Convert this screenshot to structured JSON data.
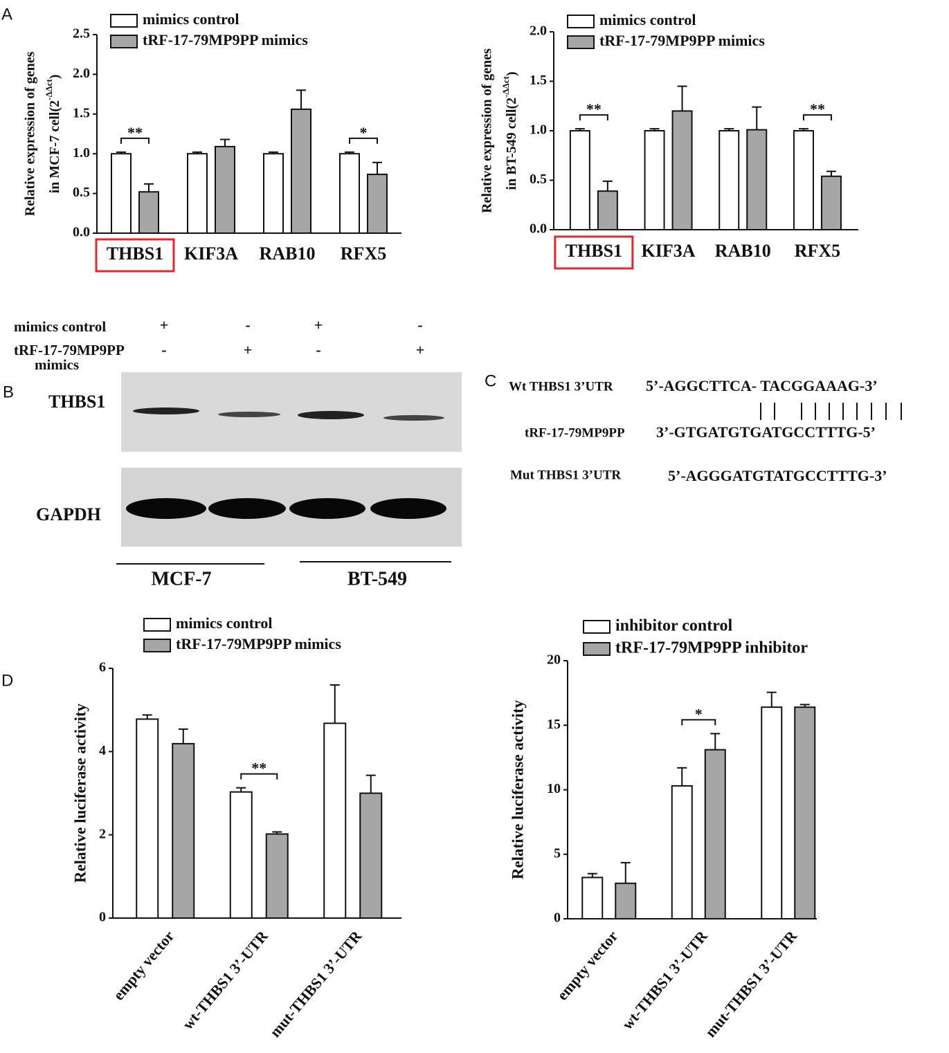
{
  "chart_data": [
    {
      "type": "bar",
      "panel": "A",
      "ylabel": [
        "Relative  expression of genes",
        "in MCF-7 cell(2",
        "-ΔΔct",
        ")"
      ],
      "categories": [
        "THBS1",
        "KIF3A",
        "RAB10",
        "RFX5"
      ],
      "series": [
        {
          "name": "mimics control",
          "color": "#ffffff",
          "values": [
            1.0,
            1.0,
            1.0,
            1.0
          ],
          "errors": [
            0.02,
            0.02,
            0.02,
            0.02
          ]
        },
        {
          "name": "tRF-17-79MP9PP mimics",
          "color": "#a6a6a6",
          "values": [
            0.52,
            1.09,
            1.56,
            0.74
          ],
          "errors": [
            0.1,
            0.09,
            0.24,
            0.15
          ]
        }
      ],
      "significance": [
        "**",
        null,
        null,
        "*"
      ],
      "highlight": [
        true,
        false,
        false,
        false
      ],
      "highlight_color": "#e8262b",
      "ylim": [
        0,
        2.5
      ],
      "yticks": [
        {
          "value": 0,
          "label": "0.0"
        },
        {
          "value": 0.5,
          "label": "0.5"
        },
        {
          "value": 1,
          "label": "1.0"
        },
        {
          "value": 1.5,
          "label": "1.5"
        },
        {
          "value": 2,
          "label": "2.0"
        },
        {
          "value": 2.5,
          "label": "2.5"
        }
      ]
    },
    {
      "type": "bar",
      "ylabel": [
        "Relative  expression of genes",
        "in BT-549 cell(2",
        "-ΔΔct",
        ")"
      ],
      "categories": [
        "THBS1",
        "KIF3A",
        "RAB10",
        "RFX5"
      ],
      "series": [
        {
          "name": "mimics control",
          "color": "#ffffff",
          "values": [
            1.0,
            1.0,
            1.0,
            1.0
          ],
          "errors": [
            0.02,
            0.02,
            0.02,
            0.02
          ]
        },
        {
          "name": "tRF-17-79MP9PP mimics",
          "color": "#a6a6a6",
          "values": [
            0.39,
            1.2,
            1.01,
            0.54
          ],
          "errors": [
            0.1,
            0.25,
            0.23,
            0.05
          ]
        }
      ],
      "significance": [
        "**",
        null,
        null,
        "**"
      ],
      "highlight": [
        true,
        false,
        false,
        false
      ],
      "highlight_color": "#e8262b",
      "ylim": [
        0,
        2.0
      ],
      "yticks": [
        {
          "value": 0,
          "label": "0.0"
        },
        {
          "value": 0.5,
          "label": "0.5"
        },
        {
          "value": 1,
          "label": "1.0"
        },
        {
          "value": 1.5,
          "label": "1.5"
        },
        {
          "value": 2,
          "label": "2.0"
        }
      ]
    },
    {
      "type": "bar",
      "panel": "D",
      "ylabel": "Relative luciferase activity",
      "categories": [
        "empty vector",
        "wt-THBS1 3’-UTR",
        "mut-THBS1 3’-UTR"
      ],
      "series": [
        {
          "name": "mimics control",
          "color": "#ffffff",
          "values": [
            4.78,
            3.03,
            4.68
          ],
          "errors": [
            0.1,
            0.1,
            0.92
          ]
        },
        {
          "name": "tRF-17-79MP9PP mimics",
          "color": "#a6a6a6",
          "values": [
            4.19,
            2.02,
            3.0
          ],
          "errors": [
            0.35,
            0.05,
            0.43
          ]
        }
      ],
      "significance": [
        null,
        "**",
        null
      ],
      "ylim": [
        0,
        6
      ],
      "yticks": [
        0,
        2,
        4,
        6
      ]
    },
    {
      "type": "bar",
      "ylabel": "Relative luciferase activity",
      "categories": [
        "empty vector",
        "wt-THBS1 3’-UTR",
        "mut-THBS1 3’-UTR"
      ],
      "series": [
        {
          "name": "inhibitor control",
          "color": "#ffffff",
          "values": [
            3.2,
            10.3,
            16.4
          ],
          "errors": [
            0.3,
            1.4,
            1.15
          ]
        },
        {
          "name": "tRF-17-79MP9PP inhibitor",
          "color": "#a6a6a6",
          "values": [
            2.75,
            13.1,
            16.4
          ],
          "errors": [
            1.6,
            1.25,
            0.2
          ]
        }
      ],
      "significance": [
        null,
        "*",
        null
      ],
      "ylim": [
        0,
        20
      ],
      "yticks": [
        0,
        5,
        10,
        15,
        20
      ]
    }
  ],
  "blot": {
    "panel": "B",
    "conditions": [
      {
        "label": [
          "mimics control"
        ],
        "signs": [
          "+",
          "-",
          "+",
          "-"
        ]
      },
      {
        "label": [
          "tRF-17-79MP9PP",
          "mimics"
        ],
        "signs": [
          "-",
          "+",
          "-",
          "+"
        ]
      }
    ],
    "bands": [
      "THBS1",
      "GAPDH"
    ],
    "cell_lines": [
      "MCF-7",
      "BT-549"
    ]
  },
  "sequence": {
    "panel": "C",
    "rows": [
      {
        "label": "Wt THBS1 3’UTR",
        "sequence": "5’-AGGCTTCA- TACGGAAAG-3’"
      },
      {
        "label": "tRF-17-79MP9PP",
        "sequence": "3’-GTGATGTGATGCCTTTG-5’"
      },
      {
        "label": "Mut THBS1 3’UTR",
        "sequence": "5’-AGGGATGTATGCCTTTG-3’"
      }
    ]
  }
}
